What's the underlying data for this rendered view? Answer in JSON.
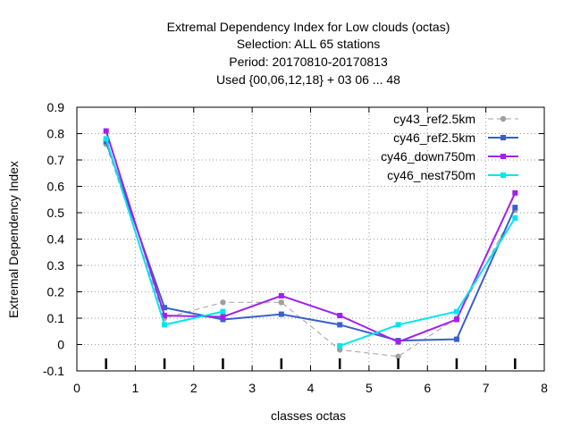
{
  "chart_data": {
    "type": "line",
    "title_lines": [
      "Extremal Dependency Index  for Low clouds (octas)",
      "Selection: ALL      65 stations",
      "Period: 20170810-20170813",
      "Used {00,06,12,18} + 03 06 ... 48"
    ],
    "xlabel": "classes octas",
    "ylabel": "Extremal Dependency Index",
    "xlim": [
      0,
      8
    ],
    "ylim": [
      -0.1,
      0.9
    ],
    "xticks": [
      0,
      1,
      2,
      3,
      4,
      5,
      6,
      7,
      8
    ],
    "yticks": [
      -0.1,
      0,
      0.1,
      0.2,
      0.3,
      0.4,
      0.5,
      0.6,
      0.7,
      0.8,
      0.9
    ],
    "xtick_labels": [
      "0",
      "1",
      "2",
      "3",
      "4",
      "5",
      "6",
      "7",
      "8"
    ],
    "ytick_labels": [
      "-0.1",
      "0",
      "0.1",
      "0.2",
      "0.3",
      "0.4",
      "0.5",
      "0.6",
      "0.7",
      "0.8",
      "0.9"
    ],
    "grid": true,
    "legend_position": "top-right",
    "x": [
      0.5,
      1.5,
      2.5,
      3.5,
      4.5,
      5.5,
      6.5,
      7.5
    ],
    "series": [
      {
        "name": "cy43_ref2.5km",
        "color": "#a0a0a0",
        "dashed": true,
        "values": [
          0.76,
          0.1,
          0.16,
          0.16,
          -0.02,
          -0.045,
          0.1,
          0.51
        ]
      },
      {
        "name": "cy46_ref2.5km",
        "color": "#3a5fcd",
        "dashed": false,
        "values": [
          0.77,
          0.14,
          0.095,
          0.115,
          0.075,
          0.015,
          0.02,
          0.52
        ]
      },
      {
        "name": "cy46_down750m",
        "color": "#a020f0",
        "dashed": false,
        "values": [
          0.81,
          0.11,
          0.105,
          0.185,
          0.11,
          0.01,
          0.095,
          0.575
        ]
      },
      {
        "name": "cy46_nest750m",
        "color": "#00e5ee",
        "dashed": false,
        "values": [
          0.78,
          0.075,
          0.125,
          null,
          -0.005,
          0.075,
          0.125,
          0.48
        ]
      }
    ],
    "bottom_markers_x": [
      0.5,
      1.5,
      2.5,
      3.5,
      4.5,
      5.5,
      6.5,
      7.5
    ]
  }
}
